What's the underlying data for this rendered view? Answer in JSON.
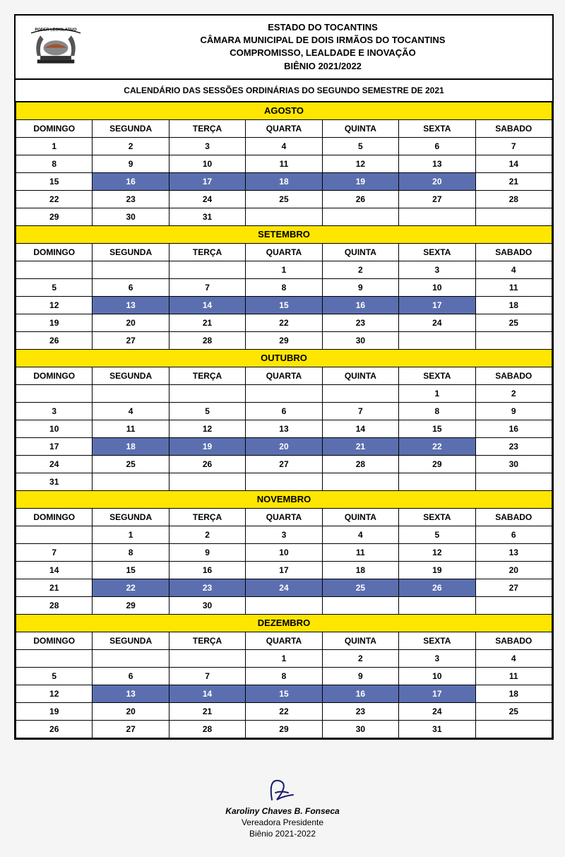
{
  "header": {
    "line1": "ESTADO DO TOCANTINS",
    "line2": "CÂMARA MUNICIPAL DE DOIS IRMÃOS DO TOCANTINS",
    "line3": "COMPROMISSO, LEALDADE E INOVAÇÃO",
    "line4": "BIÊNIO 2021/2022",
    "logo_top": "PODER LEGISLATIVO"
  },
  "subtitle": "CALENDÁRIO DAS SESSÕES ORDINÁRIAS DO SEGUNDO SEMESTRE DE 2021",
  "days": [
    "DOMINGO",
    "SEGUNDA",
    "TERÇA",
    "QUARTA",
    "QUINTA",
    "SEXTA",
    "SABADO"
  ],
  "colors": {
    "month_bg": "#ffe600",
    "highlight_bg": "#5b6fb0",
    "highlight_fg": "#ffffff",
    "border": "#000000",
    "page_bg": "#ffffff"
  },
  "months": [
    {
      "name": "AGOSTO",
      "rows": [
        [
          {
            "v": "1"
          },
          {
            "v": "2"
          },
          {
            "v": "3"
          },
          {
            "v": "4"
          },
          {
            "v": "5"
          },
          {
            "v": "6"
          },
          {
            "v": "7"
          }
        ],
        [
          {
            "v": "8"
          },
          {
            "v": "9"
          },
          {
            "v": "10"
          },
          {
            "v": "11"
          },
          {
            "v": "12"
          },
          {
            "v": "13"
          },
          {
            "v": "14"
          }
        ],
        [
          {
            "v": "15"
          },
          {
            "v": "16",
            "h": true
          },
          {
            "v": "17",
            "h": true
          },
          {
            "v": "18",
            "h": true
          },
          {
            "v": "19",
            "h": true
          },
          {
            "v": "20",
            "h": true
          },
          {
            "v": "21"
          }
        ],
        [
          {
            "v": "22"
          },
          {
            "v": "23"
          },
          {
            "v": "24"
          },
          {
            "v": "25"
          },
          {
            "v": "26"
          },
          {
            "v": "27"
          },
          {
            "v": "28"
          }
        ],
        [
          {
            "v": "29"
          },
          {
            "v": "30"
          },
          {
            "v": "31"
          },
          {
            "v": ""
          },
          {
            "v": ""
          },
          {
            "v": ""
          },
          {
            "v": ""
          }
        ]
      ]
    },
    {
      "name": "SETEMBRO",
      "rows": [
        [
          {
            "v": ""
          },
          {
            "v": ""
          },
          {
            "v": ""
          },
          {
            "v": "1"
          },
          {
            "v": "2"
          },
          {
            "v": "3"
          },
          {
            "v": "4"
          }
        ],
        [
          {
            "v": "5"
          },
          {
            "v": "6"
          },
          {
            "v": "7"
          },
          {
            "v": "8"
          },
          {
            "v": "9"
          },
          {
            "v": "10"
          },
          {
            "v": "11"
          }
        ],
        [
          {
            "v": "12"
          },
          {
            "v": "13",
            "h": true
          },
          {
            "v": "14",
            "h": true
          },
          {
            "v": "15",
            "h": true
          },
          {
            "v": "16",
            "h": true
          },
          {
            "v": "17",
            "h": true
          },
          {
            "v": "18"
          }
        ],
        [
          {
            "v": "19"
          },
          {
            "v": "20"
          },
          {
            "v": "21"
          },
          {
            "v": "22"
          },
          {
            "v": "23"
          },
          {
            "v": "24"
          },
          {
            "v": "25"
          }
        ],
        [
          {
            "v": "26"
          },
          {
            "v": "27"
          },
          {
            "v": "28"
          },
          {
            "v": "29"
          },
          {
            "v": "30"
          },
          {
            "v": ""
          },
          {
            "v": ""
          }
        ]
      ]
    },
    {
      "name": "OUTUBRO",
      "rows": [
        [
          {
            "v": ""
          },
          {
            "v": ""
          },
          {
            "v": ""
          },
          {
            "v": ""
          },
          {
            "v": ""
          },
          {
            "v": "1"
          },
          {
            "v": "2"
          }
        ],
        [
          {
            "v": "3"
          },
          {
            "v": "4"
          },
          {
            "v": "5"
          },
          {
            "v": "6"
          },
          {
            "v": "7"
          },
          {
            "v": "8"
          },
          {
            "v": "9"
          }
        ],
        [
          {
            "v": "10"
          },
          {
            "v": "11"
          },
          {
            "v": "12"
          },
          {
            "v": "13"
          },
          {
            "v": "14"
          },
          {
            "v": "15"
          },
          {
            "v": "16"
          }
        ],
        [
          {
            "v": "17"
          },
          {
            "v": "18",
            "h": true
          },
          {
            "v": "19",
            "h": true
          },
          {
            "v": "20",
            "h": true
          },
          {
            "v": "21",
            "h": true
          },
          {
            "v": "22",
            "h": true
          },
          {
            "v": "23"
          }
        ],
        [
          {
            "v": "24"
          },
          {
            "v": "25"
          },
          {
            "v": "26"
          },
          {
            "v": "27"
          },
          {
            "v": "28"
          },
          {
            "v": "29"
          },
          {
            "v": "30"
          }
        ],
        [
          {
            "v": "31"
          },
          {
            "v": ""
          },
          {
            "v": ""
          },
          {
            "v": ""
          },
          {
            "v": ""
          },
          {
            "v": ""
          },
          {
            "v": ""
          }
        ]
      ]
    },
    {
      "name": "NOVEMBRO",
      "rows": [
        [
          {
            "v": ""
          },
          {
            "v": "1"
          },
          {
            "v": "2"
          },
          {
            "v": "3"
          },
          {
            "v": "4"
          },
          {
            "v": "5"
          },
          {
            "v": "6"
          }
        ],
        [
          {
            "v": "7"
          },
          {
            "v": "8"
          },
          {
            "v": "9"
          },
          {
            "v": "10"
          },
          {
            "v": "11"
          },
          {
            "v": "12"
          },
          {
            "v": "13"
          }
        ],
        [
          {
            "v": "14"
          },
          {
            "v": "15"
          },
          {
            "v": "16"
          },
          {
            "v": "17"
          },
          {
            "v": "18"
          },
          {
            "v": "19"
          },
          {
            "v": "20"
          }
        ],
        [
          {
            "v": "21"
          },
          {
            "v": "22",
            "h": true
          },
          {
            "v": "23",
            "h": true
          },
          {
            "v": "24",
            "h": true
          },
          {
            "v": "25",
            "h": true
          },
          {
            "v": "26",
            "h": true
          },
          {
            "v": "27"
          }
        ],
        [
          {
            "v": "28"
          },
          {
            "v": "29"
          },
          {
            "v": "30"
          },
          {
            "v": ""
          },
          {
            "v": ""
          },
          {
            "v": ""
          },
          {
            "v": ""
          }
        ]
      ]
    },
    {
      "name": "DEZEMBRO",
      "rows": [
        [
          {
            "v": ""
          },
          {
            "v": ""
          },
          {
            "v": ""
          },
          {
            "v": "1"
          },
          {
            "v": "2"
          },
          {
            "v": "3"
          },
          {
            "v": "4"
          }
        ],
        [
          {
            "v": "5"
          },
          {
            "v": "6"
          },
          {
            "v": "7"
          },
          {
            "v": "8"
          },
          {
            "v": "9"
          },
          {
            "v": "10"
          },
          {
            "v": "11"
          }
        ],
        [
          {
            "v": "12"
          },
          {
            "v": "13",
            "h": true
          },
          {
            "v": "14",
            "h": true
          },
          {
            "v": "15",
            "h": true
          },
          {
            "v": "16",
            "h": true
          },
          {
            "v": "17",
            "h": true
          },
          {
            "v": "18"
          }
        ],
        [
          {
            "v": "19"
          },
          {
            "v": "20"
          },
          {
            "v": "21"
          },
          {
            "v": "22"
          },
          {
            "v": "23"
          },
          {
            "v": "24"
          },
          {
            "v": "25"
          }
        ],
        [
          {
            "v": "26"
          },
          {
            "v": "27"
          },
          {
            "v": "28"
          },
          {
            "v": "29"
          },
          {
            "v": "30"
          },
          {
            "v": "31"
          },
          {
            "v": ""
          }
        ]
      ]
    }
  ],
  "signature": {
    "name": "Karoliny Chaves B. Fonseca",
    "role": "Vereadora Presidente",
    "term": "Biênio 2021-2022"
  }
}
